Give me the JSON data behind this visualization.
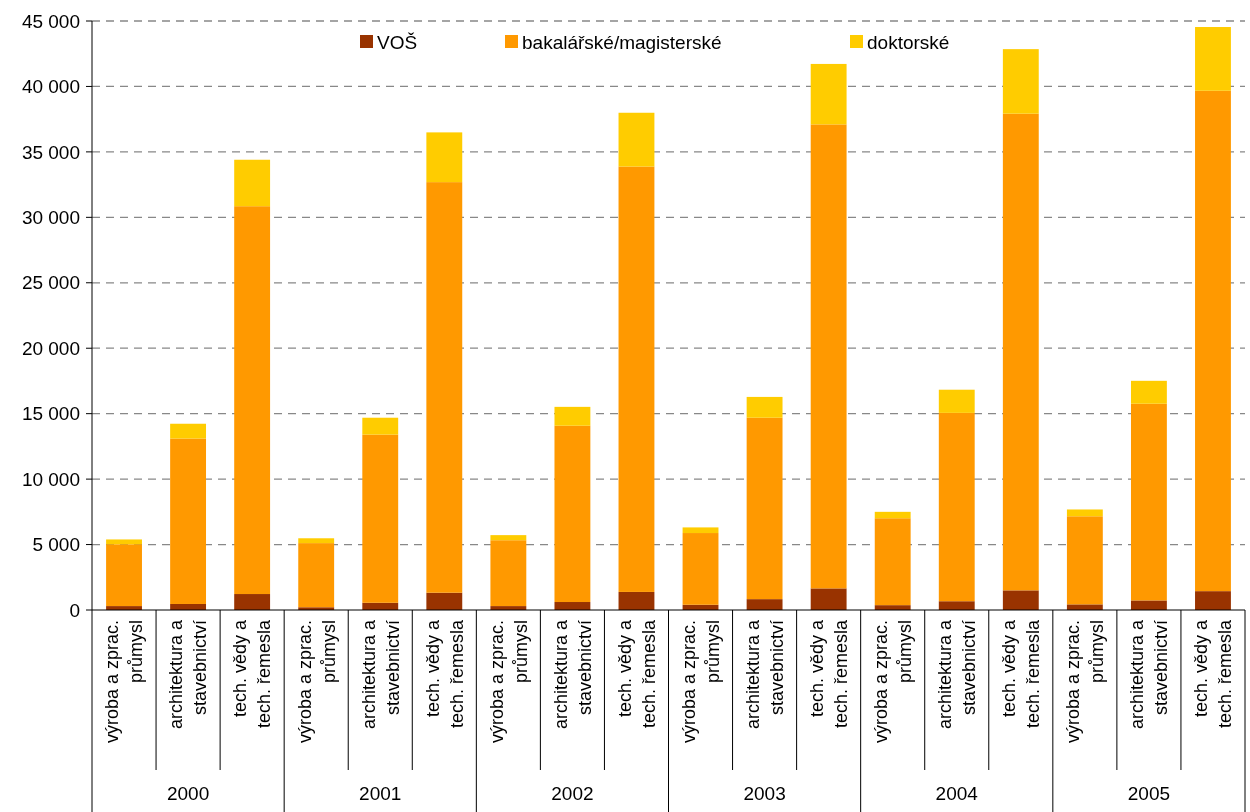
{
  "chart_data": {
    "type": "bar",
    "stacked": true,
    "categories": [
      "výroba a zprac.\nprůmysl",
      "architektura a\nstavebnictví",
      "tech. vědy a\ntech. řemesla",
      "výroba a zprac.\nprůmysl",
      "architektura a\nstavebnictví",
      "tech. vědy a\ntech. řemesla",
      "výroba a zprac.\nprůmysl",
      "architektura a\nstavebnictví",
      "tech. vědy a\ntech. řemesla",
      "výroba a zprac.\nprůmysl",
      "architektura a\nstavebnictví",
      "tech. vědy a\ntech. řemesla",
      "výroba a zprac.\nprůmysl",
      "architektura a\nstavebnictví",
      "tech. vědy a\ntech. řemesla",
      "výroba a zprac.\nprůmysl",
      "architektura a\nstavebnictví",
      "tech. vědy a\ntech. řemesla"
    ],
    "series": [
      {
        "name": "VOŠ",
        "color": "#993300",
        "values": [
          300,
          460,
          1220,
          210,
          550,
          1320,
          300,
          610,
          1380,
          400,
          830,
          1650,
          370,
          670,
          1500,
          430,
          730,
          1440
        ]
      },
      {
        "name": "bakalářské/magisterské",
        "color": "#ff9900",
        "values": [
          4720,
          12640,
          29630,
          4900,
          12850,
          31370,
          5030,
          13470,
          32500,
          5480,
          13860,
          35450,
          6640,
          14390,
          36420,
          6730,
          15030,
          38230
        ]
      },
      {
        "name": "doktorské",
        "color": "#ffcc00",
        "values": [
          370,
          1130,
          3550,
          370,
          1290,
          3800,
          390,
          1440,
          4110,
          430,
          1590,
          4620,
          490,
          1770,
          4930,
          520,
          1750,
          4870
        ]
      }
    ],
    "annotations": [
      "2000",
      "2001",
      "2002",
      "2003",
      "2004",
      "2005"
    ],
    "ylim": [
      0,
      45000
    ],
    "yticks": [
      {
        "value": 0,
        "label": "0"
      },
      {
        "value": 5000,
        "label": "5 000"
      },
      {
        "value": 10000,
        "label": "10 000"
      },
      {
        "value": 15000,
        "label": "15 000"
      },
      {
        "value": 20000,
        "label": "20 000"
      },
      {
        "value": 25000,
        "label": "25 000"
      },
      {
        "value": 30000,
        "label": "30 000"
      },
      {
        "value": 35000,
        "label": "35 000"
      },
      {
        "value": 40000,
        "label": "40 000"
      },
      {
        "value": 45000,
        "label": "45 000"
      }
    ],
    "grid": "y",
    "legend": "top"
  }
}
